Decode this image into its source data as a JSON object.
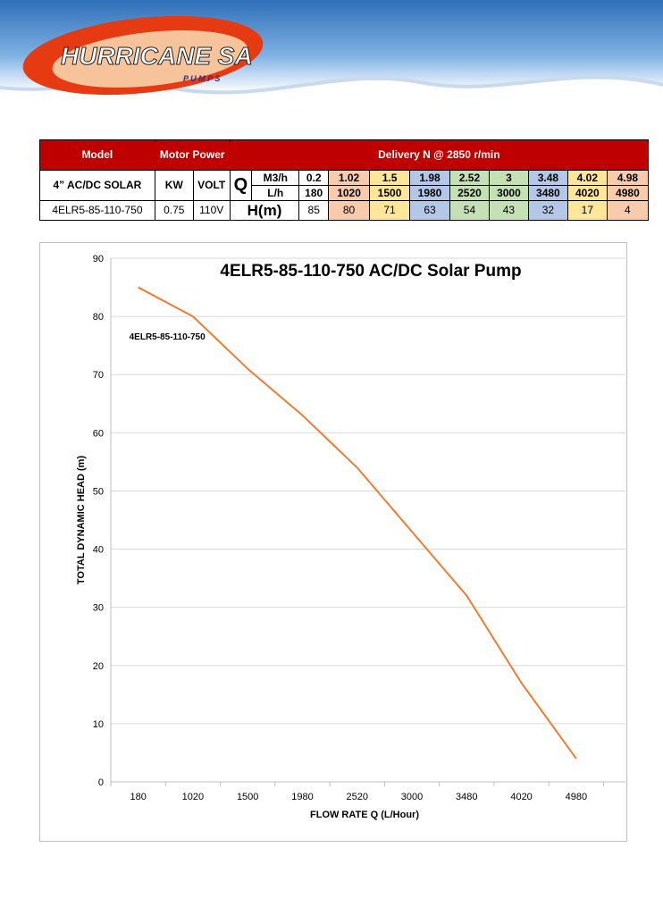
{
  "brand": {
    "name": "HURRICANE SA",
    "sub": "P U M P S"
  },
  "table": {
    "header": {
      "model": "Model",
      "motor_power": "Motor Power",
      "delivery": "Delivery N @ 2850 r/min"
    },
    "subheader": {
      "model": "4” AC/DC SOLAR",
      "kw": "KW",
      "volt": "VOLT",
      "q": "Q",
      "m3h_label": "M3/h",
      "lh_label": "L/h"
    },
    "m3h": [
      "0.2",
      "1.02",
      "1.5",
      "1.98",
      "2.52",
      "3",
      "3.48",
      "4.02",
      "4.98"
    ],
    "lh": [
      "180",
      "1020",
      "1500",
      "1980",
      "2520",
      "3000",
      "3480",
      "4020",
      "4980"
    ],
    "row": {
      "model": "4ELR5-85-110-750",
      "kw": "0.75",
      "volt": "110V",
      "h_label": "H(m)",
      "h": [
        "85",
        "80",
        "71",
        "63",
        "54",
        "43",
        "32",
        "17",
        "4"
      ]
    },
    "colors": {
      "header_red": "#c00000",
      "peach": "#f8cbad",
      "yellow": "#ffe699",
      "blue": "#b4c7e7",
      "green": "#c5e0b4"
    }
  },
  "chart_data": {
    "type": "line",
    "title": "4ELR5-85-110-750 AC/DC Solar Pump",
    "xlabel": "FLOW RATE Q (L/Hour)",
    "ylabel": "TOTAL DYNAMIC HEAD (m)",
    "categories": [
      "180",
      "1020",
      "1500",
      "1980",
      "2520",
      "3000",
      "3480",
      "4020",
      "4980"
    ],
    "series": [
      {
        "name": "4ELR5-85-110-750",
        "values": [
          85,
          80,
          71,
          63,
          54,
          43,
          32,
          17,
          4
        ],
        "color": "#ed7d31"
      }
    ],
    "ylim": [
      0,
      90
    ],
    "yticks": [
      0,
      10,
      20,
      30,
      40,
      50,
      60,
      70,
      80,
      90
    ],
    "grid": true,
    "legend_position": "inline near start of line"
  }
}
